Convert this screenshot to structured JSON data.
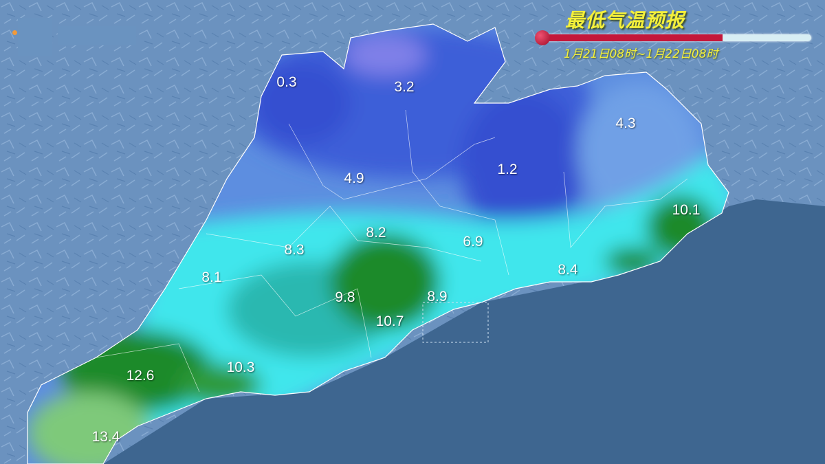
{
  "header": {
    "title": "最低气温预报",
    "period": "1月21日08时~1月22日08时",
    "thermometer_fill_fraction": 0.67
  },
  "colors": {
    "sea": "#3e6690",
    "terrain": "#6b92bf",
    "cold_blue": "#3c5fd8",
    "mid_blue": "#5d8ee0",
    "cyan": "#3fe6ec",
    "teal": "#2cb8b0",
    "green": "#1f8a2a",
    "light_green": "#7ec97a",
    "title_yellow": "#f4f03a",
    "thermo_red": "#c4173a"
  },
  "temperature_labels": [
    {
      "value": "0.3"
    },
    {
      "value": "3.2"
    },
    {
      "value": "4.3"
    },
    {
      "value": "4.9"
    },
    {
      "value": "1.2"
    },
    {
      "value": "10.1"
    },
    {
      "value": "8.2"
    },
    {
      "value": "6.9"
    },
    {
      "value": "8.3"
    },
    {
      "value": "8.1"
    },
    {
      "value": "8.4"
    },
    {
      "value": "9.8"
    },
    {
      "value": "8.9"
    },
    {
      "value": "10.7"
    },
    {
      "value": "12.6"
    },
    {
      "value": "10.3"
    },
    {
      "value": "13.4"
    }
  ]
}
